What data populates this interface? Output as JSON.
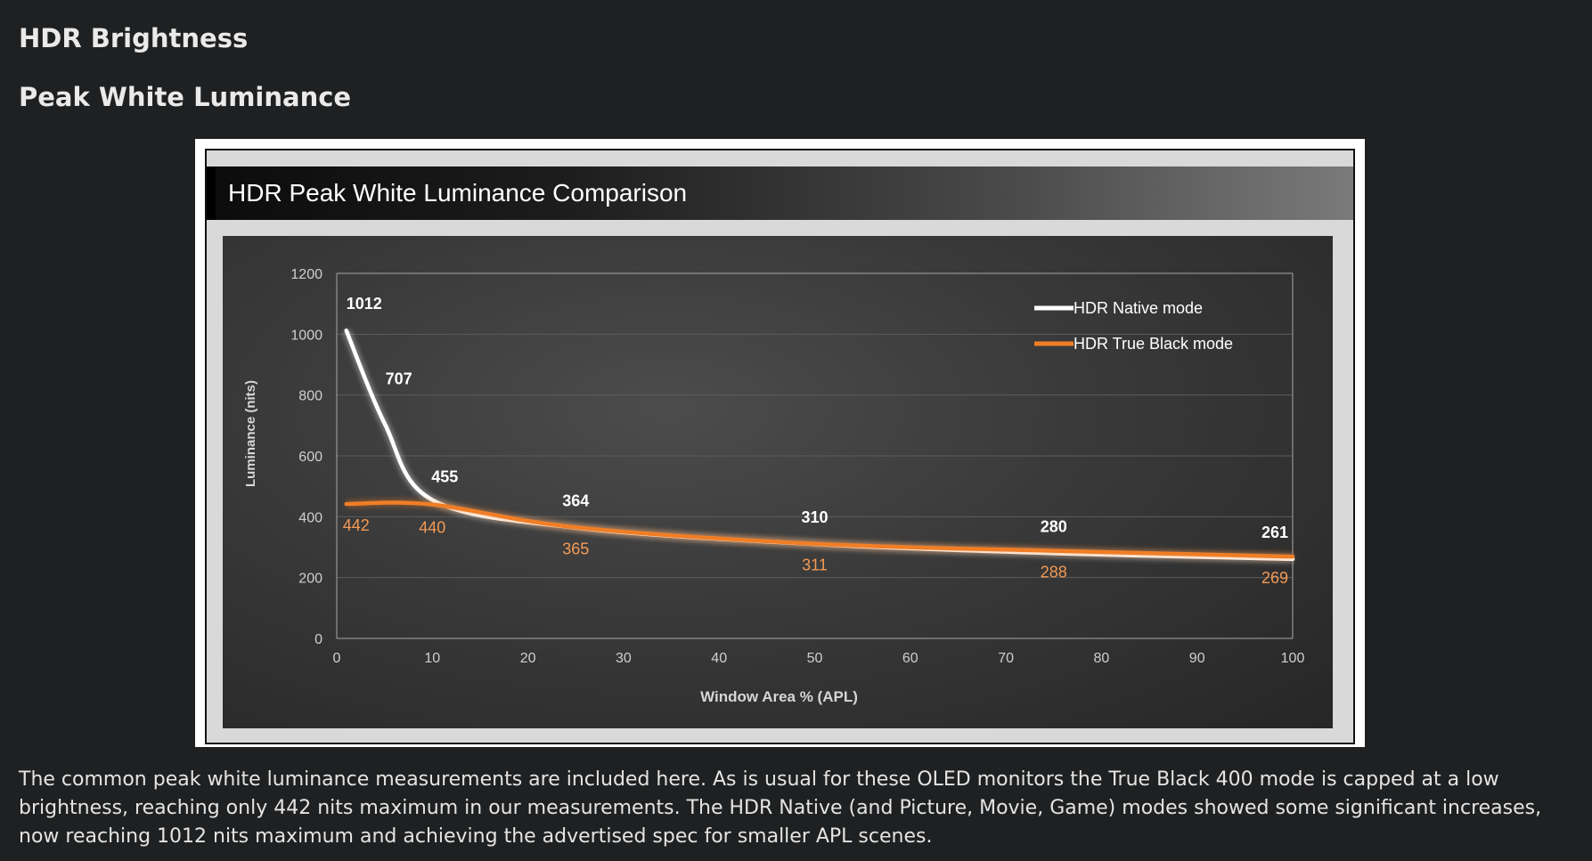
{
  "page": {
    "heading1": "HDR Brightness",
    "heading2": "Peak White Luminance",
    "paragraph": "The common peak white luminance measurements are included here. As is usual for these OLED monitors the True Black 400 mode is capped at a low brightness, reaching only 442 nits maximum in our measurements. The HDR Native (and Picture, Movie, Game) modes showed some significant increases, now reaching 1012 nits maximum and achieving the advertised spec for smaller APL scenes."
  },
  "chart_data": {
    "type": "line",
    "title": "HDR Peak White Luminance Comparison",
    "xlabel": "Window Area % (APL)",
    "ylabel": "Luminance (nits)",
    "xlim": [
      0,
      100
    ],
    "ylim": [
      0,
      1200
    ],
    "xticks": [
      0,
      10,
      20,
      30,
      40,
      50,
      60,
      70,
      80,
      90,
      100
    ],
    "yticks": [
      0,
      200,
      400,
      600,
      800,
      1000,
      1200
    ],
    "grid": true,
    "legend_position": "top-right",
    "series": [
      {
        "name": "HDR Native mode",
        "color": "#ffffff",
        "x": [
          1,
          5,
          10,
          25,
          50,
          75,
          100
        ],
        "values": [
          1012,
          707,
          455,
          364,
          310,
          280,
          261
        ],
        "labels": [
          "1012",
          "707",
          "455",
          "364",
          "310",
          "280",
          "261"
        ]
      },
      {
        "name": "HDR True Black mode",
        "color": "#f07e26",
        "x": [
          1,
          10,
          25,
          50,
          75,
          100
        ],
        "values": [
          442,
          440,
          365,
          311,
          288,
          269
        ],
        "labels": [
          "442",
          "440",
          "365",
          "311",
          "288",
          "269"
        ]
      }
    ]
  }
}
